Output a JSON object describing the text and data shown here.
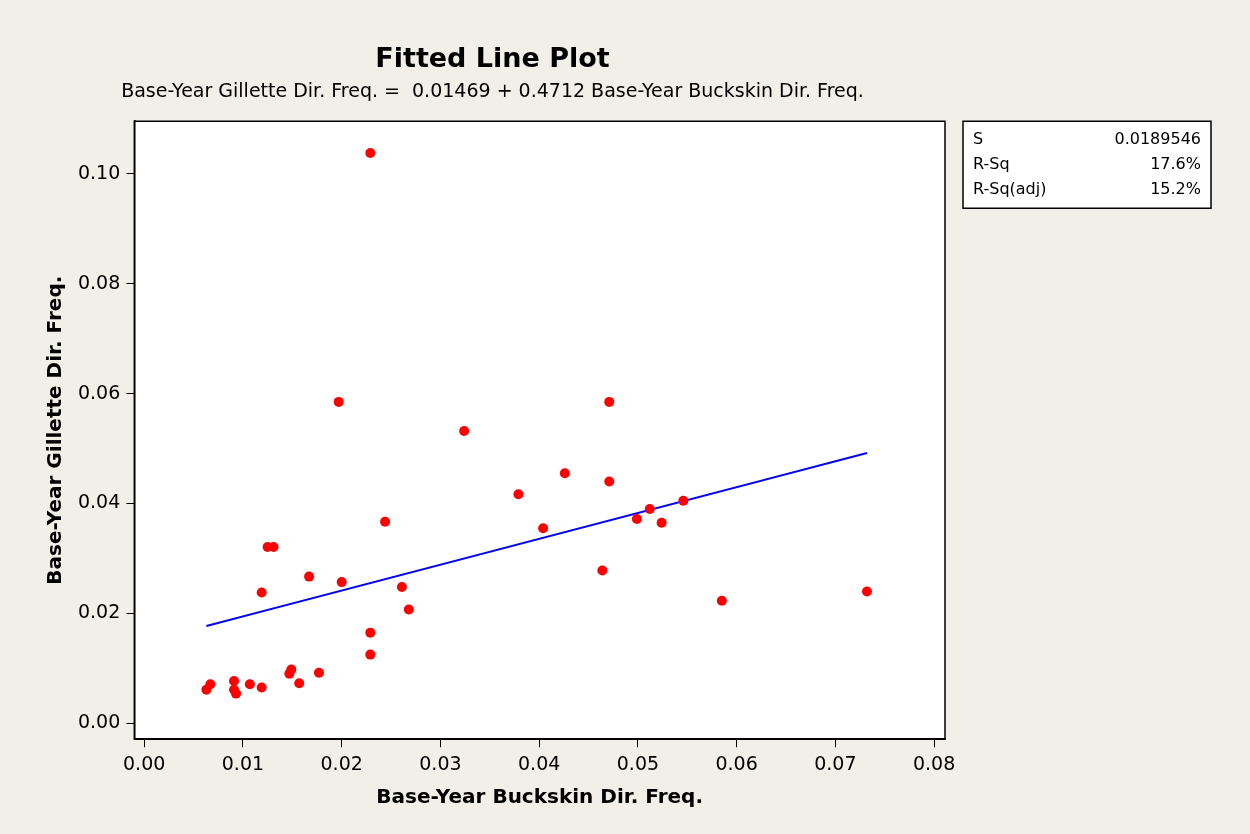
{
  "chart_data": {
    "type": "scatter",
    "title": "Fitted Line Plot",
    "subtitle": "Base-Year Gillette Dir. Freq. =  0.01469 + 0.4712 Base-Year Buckskin Dir. Freq.",
    "xlabel": "Base-Year Buckskin Dir. Freq.",
    "ylabel": "Base-Year Gillette Dir. Freq.",
    "annotations": [
      "S 0.0189546",
      "R-Sq 17.6%",
      "R-Sq(adj) 15.2%"
    ],
    "xlim": [
      -0.001,
      0.0811
    ],
    "ylim": [
      -0.0029,
      0.1096
    ],
    "xticks": [
      {
        "value": 0,
        "label": "0.00"
      },
      0.01,
      0.02,
      0.03,
      0.04,
      0.05,
      0.06,
      0.07,
      0.08
    ],
    "yticks": [
      {
        "value": 0,
        "label": "0.00"
      },
      0.02,
      0.04,
      0.06,
      0.08,
      {
        "value": 0.1,
        "label": "0.10"
      }
    ],
    "grid": false,
    "legend": false,
    "marker": "circle",
    "series": [
      {
        "type": "scatter",
        "color": "#ff0000",
        "x": [
          0.0063,
          0.0067,
          0.0091,
          0.0091,
          0.0093,
          0.0107,
          0.0119,
          0.0119,
          0.0125,
          0.0131,
          0.0147,
          0.0149,
          0.0157,
          0.0167,
          0.0177,
          0.0197,
          0.02,
          0.0229,
          0.0229,
          0.0229,
          0.0244,
          0.0261,
          0.0268,
          0.0324,
          0.0379,
          0.0404,
          0.0426,
          0.0464,
          0.0471,
          0.0471,
          0.0499,
          0.0512,
          0.0524,
          0.0546,
          0.0585,
          0.0732
        ],
        "values": [
          0.0061,
          0.0071,
          0.0077,
          0.0061,
          0.0054,
          0.0071,
          0.0065,
          0.0238,
          0.0321,
          0.0321,
          0.009,
          0.0098,
          0.0073,
          0.0267,
          0.0092,
          0.0585,
          0.0257,
          0.1038,
          0.0165,
          0.0125,
          0.0367,
          0.0248,
          0.0207,
          0.0532,
          0.0417,
          0.0355,
          0.0455,
          0.0278,
          0.0585,
          0.044,
          0.0372,
          0.039,
          0.0365,
          0.0405,
          0.0223,
          0.024
        ]
      },
      {
        "type": "line",
        "color": "#0000ff",
        "marker": "none",
        "line_style": "solid",
        "x": [
          0.0063,
          0.0732
        ],
        "values": [
          0.0177,
          0.0492
        ]
      }
    ]
  }
}
